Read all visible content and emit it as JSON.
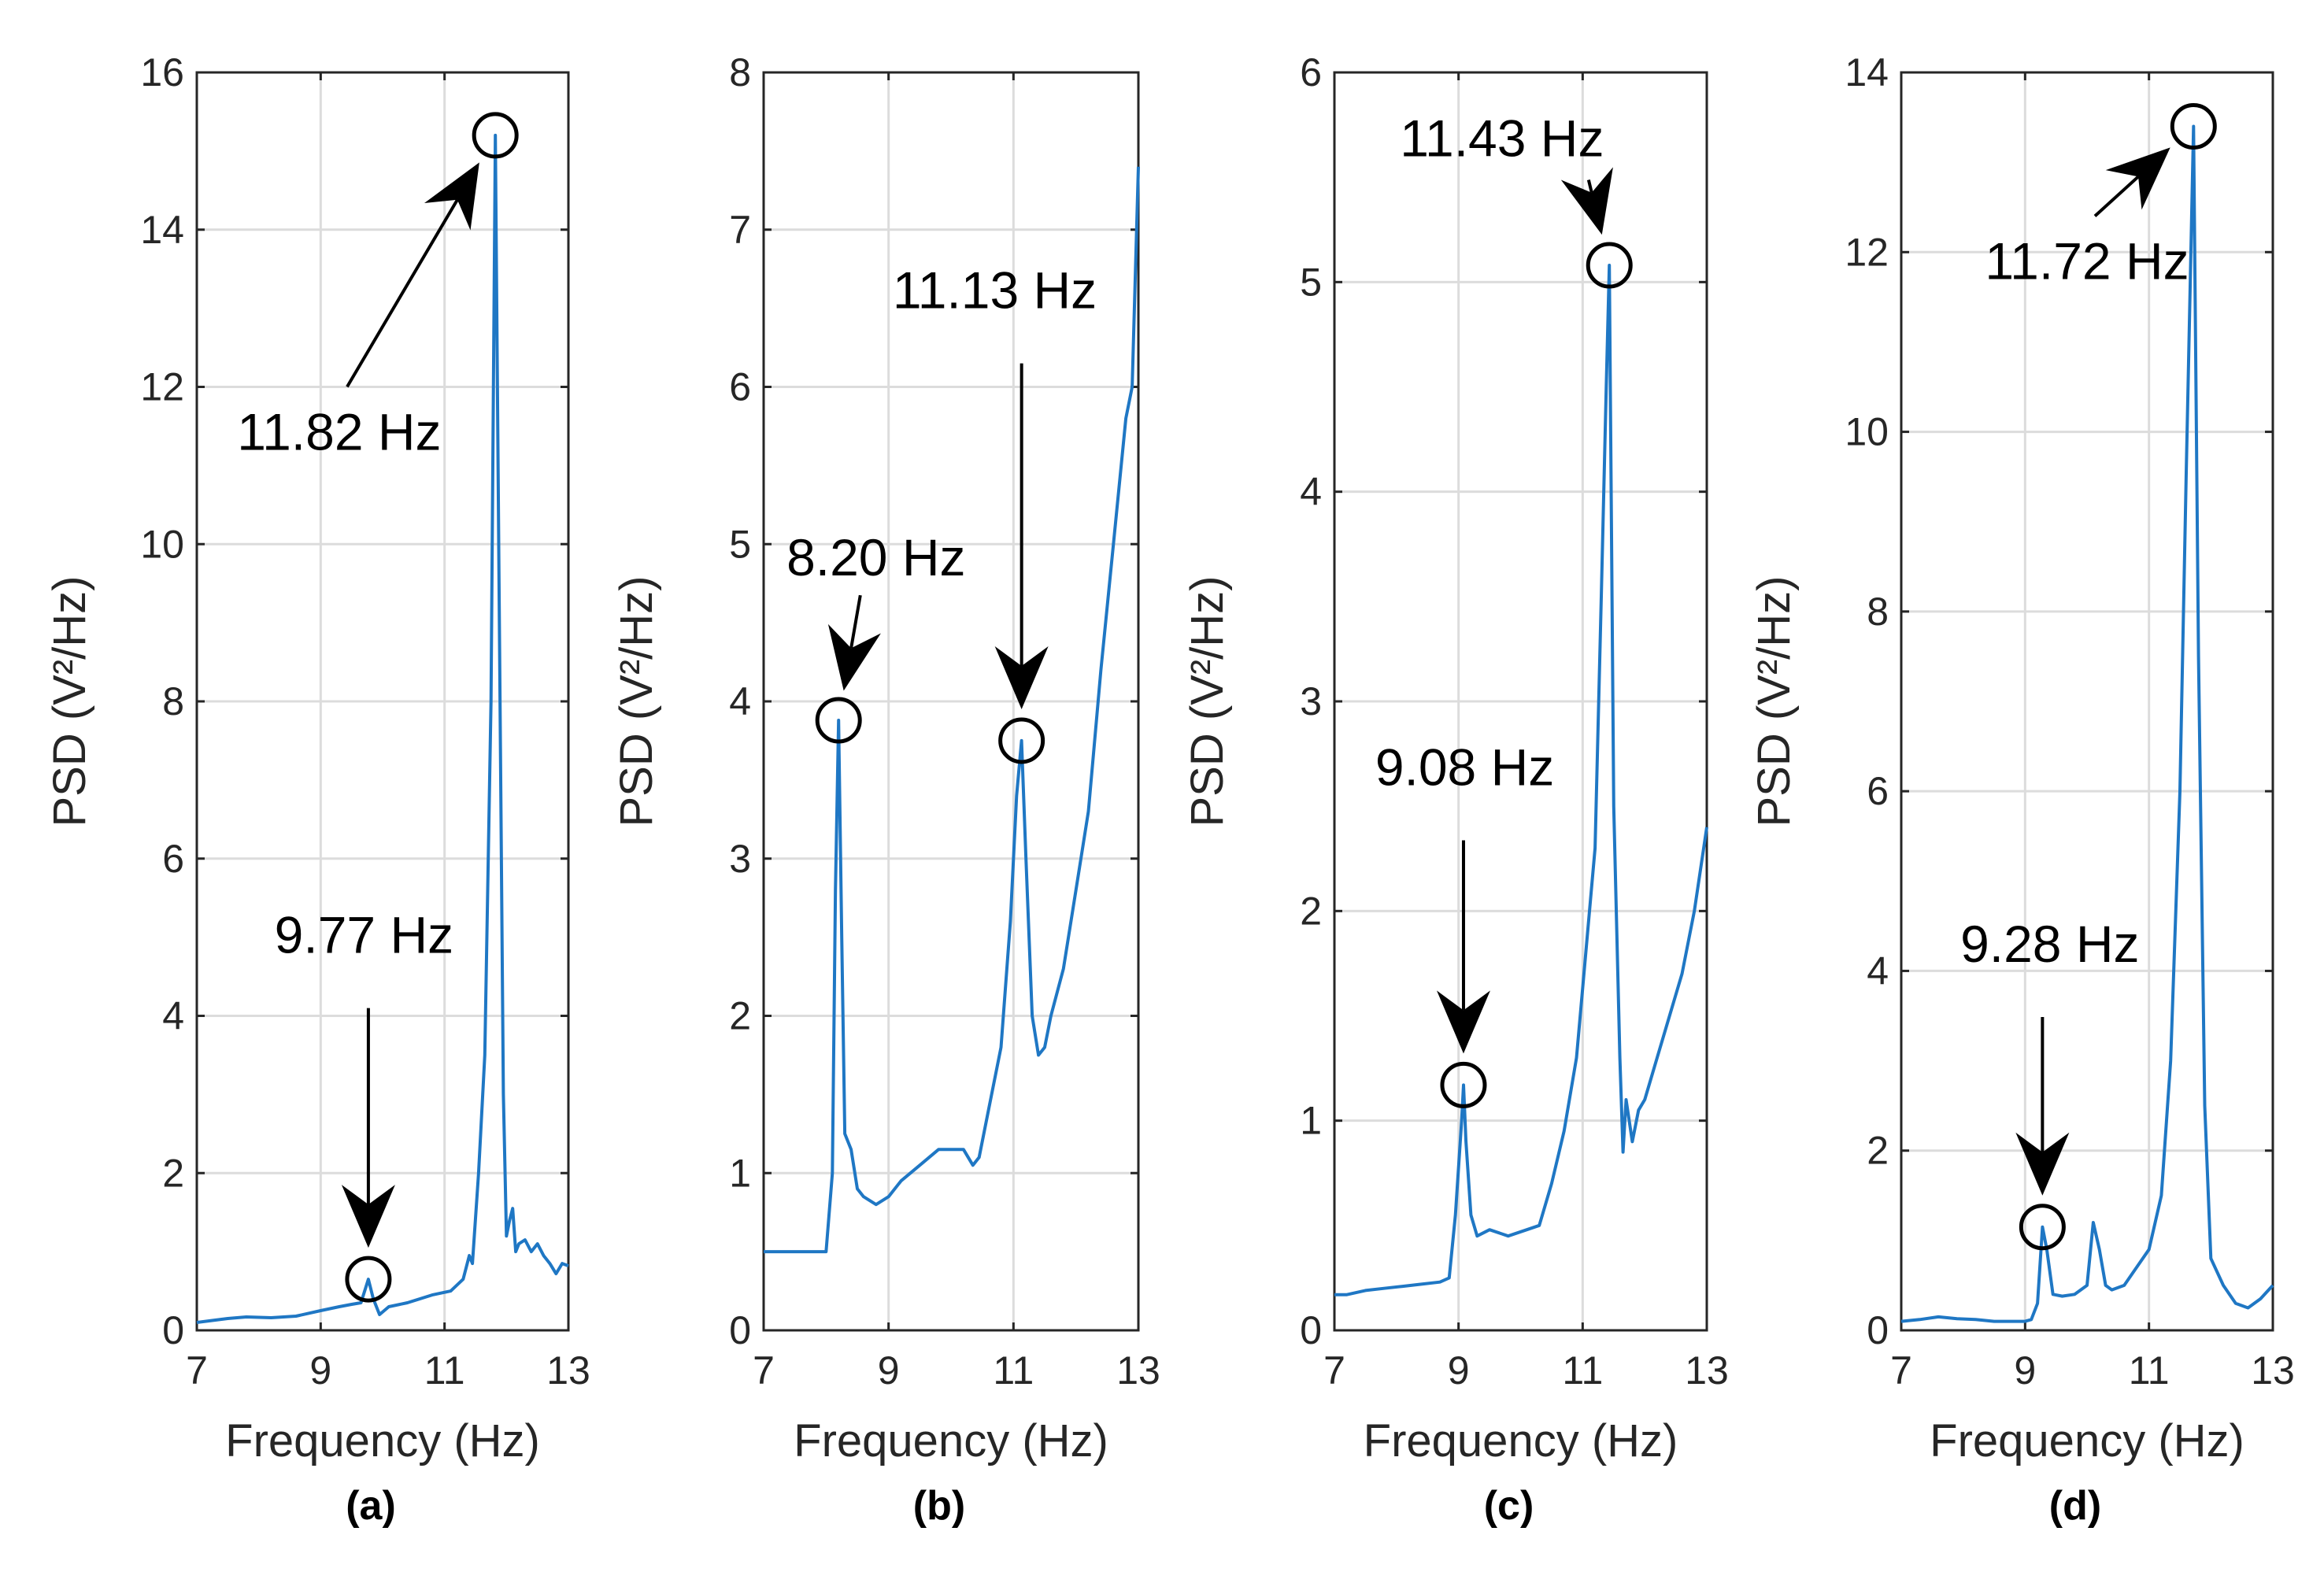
{
  "chart_data": [
    {
      "type": "line",
      "panel_label": "(a)",
      "xlabel": "Frequency (Hz)",
      "ylabel": "PSD (V²/Hz)",
      "xlim": [
        7,
        13
      ],
      "ylim": [
        0,
        16
      ],
      "xticks": [
        "7",
        "9",
        "11",
        "13"
      ],
      "yticks": [
        "0",
        "2",
        "4",
        "6",
        "8",
        "10",
        "12",
        "14",
        "16"
      ],
      "grid": true,
      "series": [
        {
          "name": "PSD",
          "x": [
            7.0,
            7.2,
            7.5,
            7.8,
            8.2,
            8.6,
            9.0,
            9.3,
            9.5,
            9.65,
            9.77,
            9.85,
            9.95,
            10.1,
            10.4,
            10.8,
            11.1,
            11.3,
            11.4,
            11.45,
            11.55,
            11.65,
            11.75,
            11.82,
            11.88,
            11.95,
            12.0,
            12.05,
            12.1,
            12.15,
            12.2,
            12.3,
            12.4,
            12.5,
            12.6,
            12.7,
            12.8,
            12.9,
            13.0
          ],
          "y": [
            0.1,
            0.12,
            0.15,
            0.17,
            0.16,
            0.18,
            0.25,
            0.3,
            0.33,
            0.35,
            0.65,
            0.4,
            0.2,
            0.3,
            0.35,
            0.45,
            0.5,
            0.65,
            0.95,
            0.85,
            2.0,
            3.5,
            8.0,
            15.2,
            9.5,
            3.0,
            1.2,
            1.4,
            1.55,
            1.0,
            1.1,
            1.15,
            1.0,
            1.1,
            0.95,
            0.85,
            0.72,
            0.85,
            0.82
          ]
        }
      ],
      "annotations": [
        {
          "text": "11.82 Hz",
          "x": 11.82,
          "y": 15.2,
          "text_x": 9.3,
          "text_y": 11.2,
          "direction": "up-right"
        },
        {
          "text": "9.77 Hz",
          "x": 9.77,
          "y": 0.65,
          "text_x": 9.7,
          "text_y": 4.8,
          "direction": "down"
        }
      ]
    },
    {
      "type": "line",
      "panel_label": "(b)",
      "xlabel": "Frequency (Hz)",
      "ylabel": "PSD (V²/Hz)",
      "xlim": [
        7,
        13
      ],
      "ylim": [
        0,
        8
      ],
      "xticks": [
        "7",
        "9",
        "11",
        "13"
      ],
      "yticks": [
        "0",
        "1",
        "2",
        "3",
        "4",
        "5",
        "6",
        "7",
        "8"
      ],
      "grid": true,
      "series": [
        {
          "name": "PSD",
          "x": [
            7.0,
            7.2,
            7.4,
            7.6,
            7.8,
            8.0,
            8.1,
            8.15,
            8.2,
            8.25,
            8.3,
            8.4,
            8.5,
            8.6,
            8.8,
            9.0,
            9.2,
            9.5,
            9.8,
            10.0,
            10.2,
            10.35,
            10.45,
            10.6,
            10.8,
            10.95,
            11.05,
            11.13,
            11.2,
            11.3,
            11.4,
            11.5,
            11.6,
            11.8,
            12.0,
            12.2,
            12.4,
            12.6,
            12.8,
            12.9,
            13.0
          ],
          "y": [
            0.5,
            0.5,
            0.5,
            0.5,
            0.5,
            0.5,
            1.0,
            2.8,
            3.88,
            2.5,
            1.25,
            1.15,
            0.9,
            0.85,
            0.8,
            0.85,
            0.95,
            1.05,
            1.15,
            1.15,
            1.15,
            1.05,
            1.1,
            1.4,
            1.8,
            2.6,
            3.4,
            3.75,
            3.0,
            2.0,
            1.75,
            1.8,
            2.0,
            2.3,
            2.8,
            3.3,
            4.2,
            5.0,
            5.8,
            6.0,
            7.4
          ]
        }
      ],
      "annotations": [
        {
          "text": "8.20 Hz",
          "x": 8.2,
          "y": 3.88,
          "text_x": 8.8,
          "text_y": 4.8,
          "direction": "down-left"
        },
        {
          "text": "11.13 Hz",
          "x": 11.13,
          "y": 3.75,
          "text_x": 10.7,
          "text_y": 6.5,
          "direction": "down"
        }
      ]
    },
    {
      "type": "line",
      "panel_label": "(c)",
      "xlabel": "Frequency (Hz)",
      "ylabel": "PSD (V²/Hz)",
      "xlim": [
        7,
        13
      ],
      "ylim": [
        0,
        6
      ],
      "xticks": [
        "7",
        "9",
        "11",
        "13"
      ],
      "yticks": [
        "0",
        "1",
        "2",
        "3",
        "4",
        "5",
        "6"
      ],
      "grid": true,
      "series": [
        {
          "name": "PSD",
          "x": [
            7.0,
            7.2,
            7.5,
            7.8,
            8.1,
            8.4,
            8.7,
            8.85,
            8.95,
            9.05,
            9.08,
            9.12,
            9.2,
            9.3,
            9.5,
            9.8,
            10.1,
            10.3,
            10.5,
            10.7,
            10.9,
            11.05,
            11.2,
            11.3,
            11.38,
            11.43,
            11.5,
            11.6,
            11.65,
            11.7,
            11.8,
            11.9,
            12.0,
            12.2,
            12.4,
            12.6,
            12.8,
            12.9,
            13.0
          ],
          "y": [
            0.17,
            0.17,
            0.19,
            0.2,
            0.21,
            0.22,
            0.23,
            0.25,
            0.55,
            1.0,
            1.17,
            0.9,
            0.55,
            0.45,
            0.48,
            0.45,
            0.48,
            0.5,
            0.7,
            0.95,
            1.3,
            1.8,
            2.3,
            3.5,
            4.5,
            5.08,
            2.5,
            1.3,
            0.85,
            1.1,
            0.9,
            1.05,
            1.1,
            1.3,
            1.5,
            1.7,
            2.0,
            2.2,
            2.4
          ]
        }
      ],
      "annotations": [
        {
          "text": "11.43 Hz",
          "x": 11.43,
          "y": 5.08,
          "text_x": 9.7,
          "text_y": 5.6,
          "direction": "down-right"
        },
        {
          "text": "9.08 Hz",
          "x": 9.08,
          "y": 1.17,
          "text_x": 9.1,
          "text_y": 2.6,
          "direction": "down"
        }
      ]
    },
    {
      "type": "line",
      "panel_label": "(d)",
      "xlabel": "Frequency (Hz)",
      "ylabel": "PSD (V²/Hz)",
      "xlim": [
        7,
        13
      ],
      "ylim": [
        0,
        14
      ],
      "xticks": [
        "7",
        "9",
        "11",
        "13"
      ],
      "yticks": [
        "0",
        "2",
        "4",
        "6",
        "8",
        "10",
        "12",
        "14"
      ],
      "grid": true,
      "series": [
        {
          "name": "PSD",
          "x": [
            7.0,
            7.3,
            7.6,
            7.9,
            8.2,
            8.5,
            8.8,
            9.0,
            9.1,
            9.2,
            9.28,
            9.35,
            9.45,
            9.6,
            9.8,
            10.0,
            10.1,
            10.2,
            10.3,
            10.4,
            10.6,
            10.8,
            11.0,
            11.2,
            11.35,
            11.5,
            11.6,
            11.72,
            11.8,
            11.9,
            12.0,
            12.2,
            12.4,
            12.6,
            12.8,
            13.0
          ],
          "y": [
            0.1,
            0.12,
            0.15,
            0.13,
            0.12,
            0.1,
            0.1,
            0.1,
            0.12,
            0.3,
            1.15,
            0.9,
            0.4,
            0.38,
            0.4,
            0.5,
            1.2,
            0.9,
            0.5,
            0.45,
            0.5,
            0.7,
            0.9,
            1.5,
            3.0,
            6.0,
            9.5,
            13.4,
            7.5,
            2.5,
            0.8,
            0.5,
            0.3,
            0.25,
            0.35,
            0.5
          ]
        }
      ],
      "annotations": [
        {
          "text": "11.72 Hz",
          "x": 11.72,
          "y": 13.4,
          "text_x": 10.0,
          "text_y": 11.7,
          "direction": "up-right"
        },
        {
          "text": "9.28 Hz",
          "x": 9.28,
          "y": 1.15,
          "text_x": 9.4,
          "text_y": 4.1,
          "direction": "down"
        }
      ]
    }
  ]
}
